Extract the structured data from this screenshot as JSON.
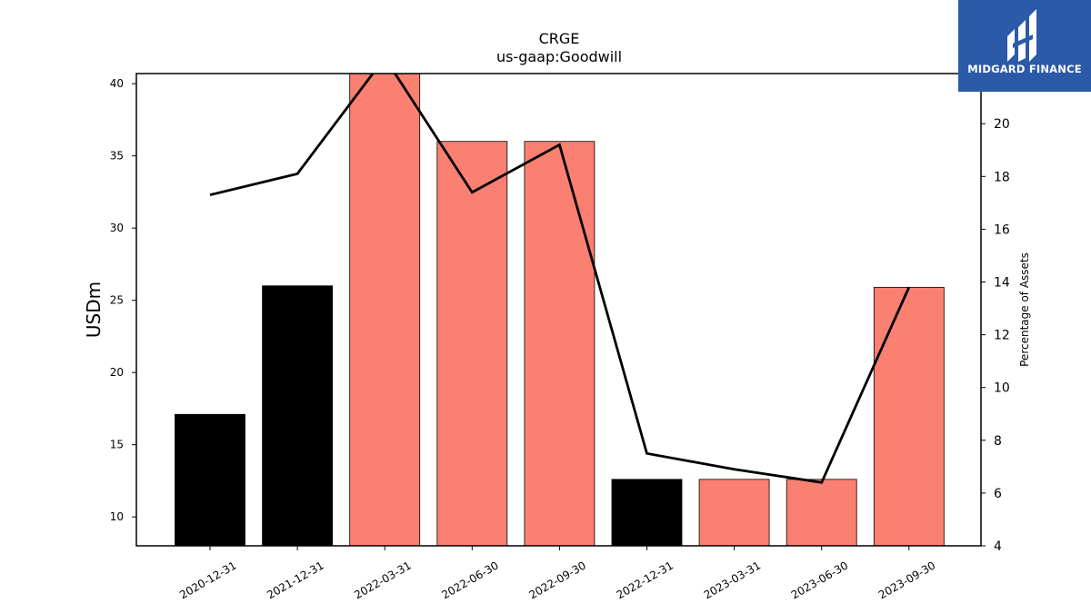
{
  "logo": {
    "name": "MIDGARD FINANCE"
  },
  "colors": {
    "reported": "#000000",
    "estimated": "#fa8072",
    "line": "#000000",
    "logo_bg": "#2b5aa8"
  },
  "chart_data": {
    "type": "bar",
    "title": "CRGE",
    "subtitle": "us-gaap:Goodwill",
    "ylabel": "USDm",
    "y2label": "Percentage of Assets",
    "categories": [
      "2020-12-31",
      "2021-12-31",
      "2022-03-31",
      "2022-06-30",
      "2022-09-30",
      "2022-12-31",
      "2023-03-31",
      "2023-06-30",
      "2023-09-30"
    ],
    "series": [
      {
        "values": [
          17.1,
          26.0,
          40.8,
          36.0,
          36.0,
          12.6,
          12.6,
          12.6,
          25.9
        ],
        "bar_colors": [
          "#000000",
          "#000000",
          "#fa8072",
          "#fa8072",
          "#fa8072",
          "#000000",
          "#fa8072",
          "#fa8072",
          "#fa8072"
        ]
      },
      {
        "axis": "right",
        "type": "line",
        "values": [
          17.3,
          18.1,
          22.5,
          17.4,
          19.2,
          7.5,
          6.9,
          6.4,
          13.8
        ]
      }
    ],
    "ylim": [
      8,
      40.7
    ],
    "y2lim": [
      4,
      21.9
    ],
    "yticks": [
      10,
      15,
      20,
      25,
      30,
      35,
      40
    ],
    "y2ticks": [
      4,
      6,
      8,
      10,
      12,
      14,
      16,
      18,
      20
    ],
    "grid": false
  }
}
